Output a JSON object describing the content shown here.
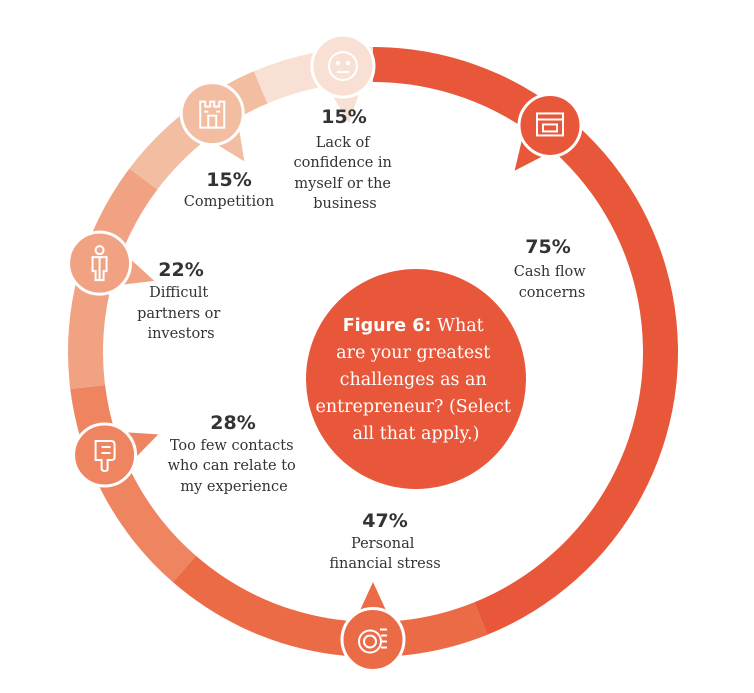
{
  "chart_data": {
    "type": "pie",
    "title_bold": "Figure 6:",
    "title_rest": "What are your greatest challenges as an entrepreneur? (Select all that apply.)",
    "slices": [
      {
        "label": "Cash flow concerns",
        "value": 75,
        "color": "#e8573a",
        "icon": "cash-register-icon"
      },
      {
        "label": "Personal financial stress",
        "value": 47,
        "color": "#ec6b47",
        "icon": "coins-icon"
      },
      {
        "label": "Too few contacts who can relate to my experience",
        "value": 28,
        "color": "#ee8560",
        "icon": "thumbs-down-icon"
      },
      {
        "label": "Difficult partners or investors",
        "value": 22,
        "color": "#f0a283",
        "icon": "person-icon"
      },
      {
        "label": "Competition",
        "value": 15,
        "color": "#f3bda2",
        "icon": "castle-icon"
      },
      {
        "label": "Lack of confidence in myself or the business",
        "value": 15,
        "color": "#f9e0d4",
        "icon": "neutral-face-icon"
      }
    ]
  },
  "display": {
    "cash": {
      "pct": "75%",
      "lines": [
        "Cash flow",
        "concerns"
      ]
    },
    "stress": {
      "pct": "47%",
      "lines": [
        "Personal",
        "financial stress"
      ]
    },
    "contacts": {
      "pct": "28%",
      "lines": [
        "Too few contacts",
        "who can relate to",
        "my experience"
      ]
    },
    "partners": {
      "pct": "22%",
      "lines": [
        "Difficult",
        "partners or",
        "investors"
      ]
    },
    "competition": {
      "pct": "15%",
      "lines": [
        "Competition"
      ]
    },
    "confidence": {
      "pct": "15%",
      "lines": [
        "Lack of",
        "confidence in",
        "myself or the",
        "business"
      ]
    },
    "center_lines": [
      "are your greatest",
      "challenges as an",
      "entrepreneur? (Select",
      "all that apply.)"
    ],
    "center_first_rest": "What"
  }
}
